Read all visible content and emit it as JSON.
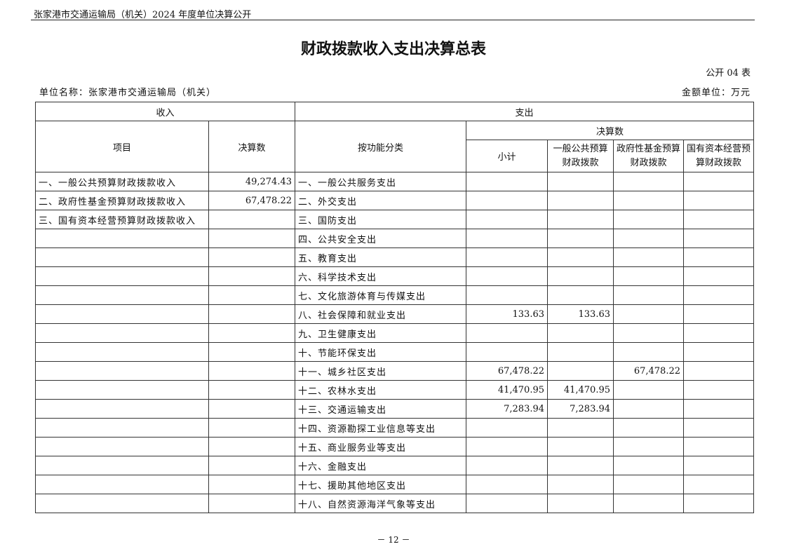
{
  "header": {
    "text": "张家港市交通运输局（机关）2024 年度单位决算公开"
  },
  "title": "财政拨款收入支出决算总表",
  "table_no": "公开 04 表",
  "unit_name": "单位名称：张家港市交通运输局（机关）",
  "money_unit": "金额单位：万元",
  "table": {
    "income_header": "收入",
    "expense_header": "支出",
    "col_item": "项目",
    "col_amount": "决算数",
    "col_function": "按功能分类",
    "col_final": "决算数",
    "col_subtotal": "小计",
    "col_general": "一般公共预算财政拨款",
    "col_fund": "政府性基金预算财政拨款",
    "col_state": "国有资本经营预算财政拨款",
    "rows": [
      [
        "一、一般公共预算财政拨款收入",
        "49,274.43",
        "一、一般公共服务支出",
        "",
        "",
        "",
        ""
      ],
      [
        "二、政府性基金预算财政拨款收入",
        "67,478.22",
        "二、外交支出",
        "",
        "",
        "",
        ""
      ],
      [
        "三、国有资本经营预算财政拨款收入",
        "",
        "三、国防支出",
        "",
        "",
        "",
        ""
      ],
      [
        "",
        "",
        "四、公共安全支出",
        "",
        "",
        "",
        ""
      ],
      [
        "",
        "",
        "五、教育支出",
        "",
        "",
        "",
        ""
      ],
      [
        "",
        "",
        "六、科学技术支出",
        "",
        "",
        "",
        ""
      ],
      [
        "",
        "",
        "七、文化旅游体育与传媒支出",
        "",
        "",
        "",
        ""
      ],
      [
        "",
        "",
        "八、社会保障和就业支出",
        "133.63",
        "133.63",
        "",
        ""
      ],
      [
        "",
        "",
        "九、卫生健康支出",
        "",
        "",
        "",
        ""
      ],
      [
        "",
        "",
        "十、节能环保支出",
        "",
        "",
        "",
        ""
      ],
      [
        "",
        "",
        "十一、城乡社区支出",
        "67,478.22",
        "",
        "67,478.22",
        ""
      ],
      [
        "",
        "",
        "十二、农林水支出",
        "41,470.95",
        "41,470.95",
        "",
        ""
      ],
      [
        "",
        "",
        "十三、交通运输支出",
        "7,283.94",
        "7,283.94",
        "",
        ""
      ],
      [
        "",
        "",
        "十四、资源勘探工业信息等支出",
        "",
        "",
        "",
        ""
      ],
      [
        "",
        "",
        "十五、商业服务业等支出",
        "",
        "",
        "",
        ""
      ],
      [
        "",
        "",
        "十六、金融支出",
        "",
        "",
        "",
        ""
      ],
      [
        "",
        "",
        "十七、援助其他地区支出",
        "",
        "",
        "",
        ""
      ],
      [
        "",
        "",
        "十八、自然资源海洋气象等支出",
        "",
        "",
        "",
        ""
      ]
    ]
  },
  "footer": "－ 12 －"
}
